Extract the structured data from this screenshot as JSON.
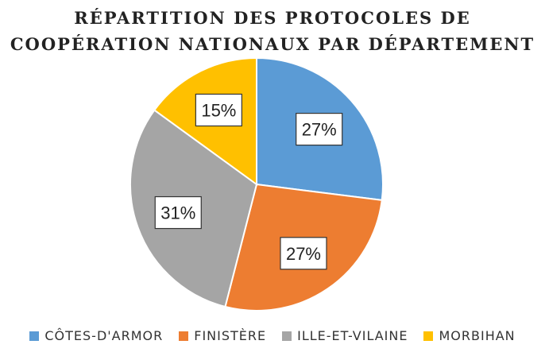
{
  "chart_data": {
    "type": "pie",
    "title_lines": [
      "RÉPARTITION DES PROTOCOLES DE",
      "COOPÉRATION NATIONAUX PAR DÉPARTEMENT"
    ],
    "series": [
      {
        "name": "CÔTES-D'ARMOR",
        "value": 27,
        "label": "27%",
        "color": "#5B9BD5"
      },
      {
        "name": "FINISTÈRE",
        "value": 27,
        "label": "27%",
        "color": "#ED7D31"
      },
      {
        "name": "ILLE-ET-VILAINE",
        "value": 31,
        "label": "31%",
        "color": "#A5A5A5"
      },
      {
        "name": "MORBIHAN",
        "value": 15,
        "label": "15%",
        "color": "#FFC000"
      }
    ],
    "start_angle": "12 o'clock",
    "direction": "clockwise",
    "legend_position": "bottom"
  }
}
